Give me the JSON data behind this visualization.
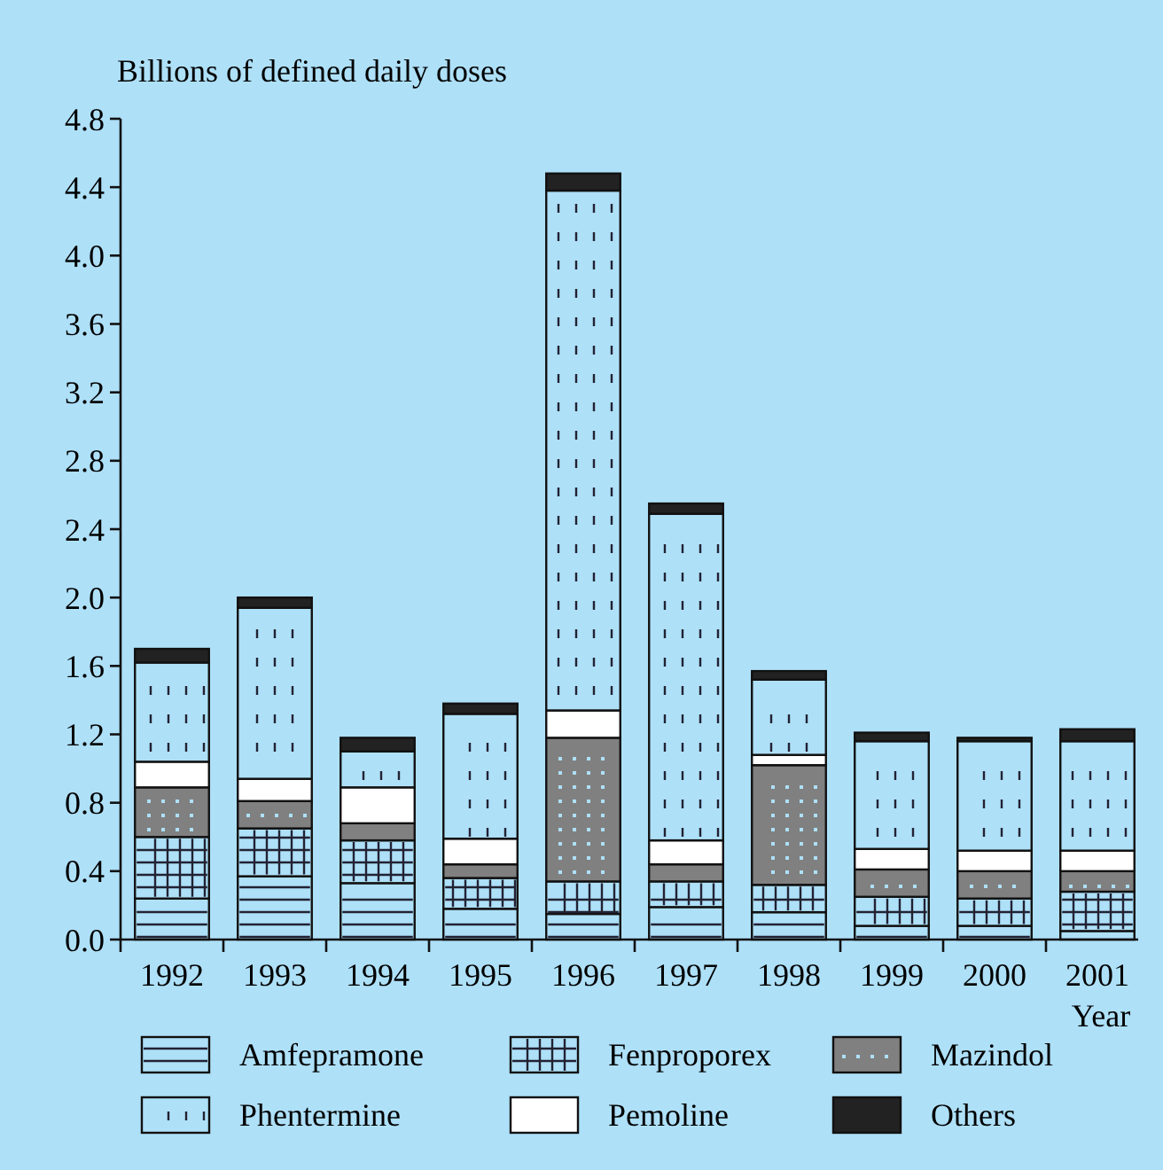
{
  "chart_data": {
    "type": "bar",
    "stacked": true,
    "ylabel": "Billions of defined daily doses",
    "xlabel": "Year",
    "categories": [
      "1992",
      "1993",
      "1994",
      "1995",
      "1996",
      "1997",
      "1998",
      "1999",
      "2000",
      "2001"
    ],
    "series": [
      {
        "name": "Amfepramone",
        "color": "#aee0f8",
        "values": [
          0.24,
          0.37,
          0.33,
          0.18,
          0.15,
          0.19,
          0.16,
          0.08,
          0.08,
          0.05
        ]
      },
      {
        "name": "Fenproporex",
        "color": "#aee0f8",
        "values": [
          0.36,
          0.28,
          0.25,
          0.18,
          0.19,
          0.15,
          0.16,
          0.17,
          0.16,
          0.23
        ]
      },
      {
        "name": "Mazindol",
        "color": "#808080",
        "values": [
          0.29,
          0.16,
          0.1,
          0.08,
          0.84,
          0.1,
          0.7,
          0.16,
          0.16,
          0.12
        ]
      },
      {
        "name": "Pemoline",
        "color": "#ffffff",
        "values": [
          0.15,
          0.13,
          0.21,
          0.15,
          0.16,
          0.14,
          0.06,
          0.12,
          0.12,
          0.12
        ]
      },
      {
        "name": "Phentermine",
        "color": "#aee0f8",
        "values": [
          0.58,
          1.0,
          0.21,
          0.73,
          3.04,
          1.91,
          0.44,
          0.63,
          0.64,
          0.64
        ]
      },
      {
        "name": "Others",
        "color": "#222222",
        "values": [
          0.08,
          0.06,
          0.08,
          0.06,
          0.1,
          0.06,
          0.05,
          0.05,
          0.02,
          0.07
        ]
      }
    ],
    "ylim": [
      0,
      4.8
    ],
    "yticks": [
      {
        "value": 0,
        "label": "0.0"
      },
      0.4,
      0.8,
      1.2,
      1.6,
      {
        "value": 2,
        "label": "2.0"
      },
      2.4,
      2.8,
      3.2,
      3.6,
      {
        "value": 4,
        "label": "4.0"
      },
      4.4,
      4.8
    ],
    "grid": false,
    "legend": "bottom"
  }
}
